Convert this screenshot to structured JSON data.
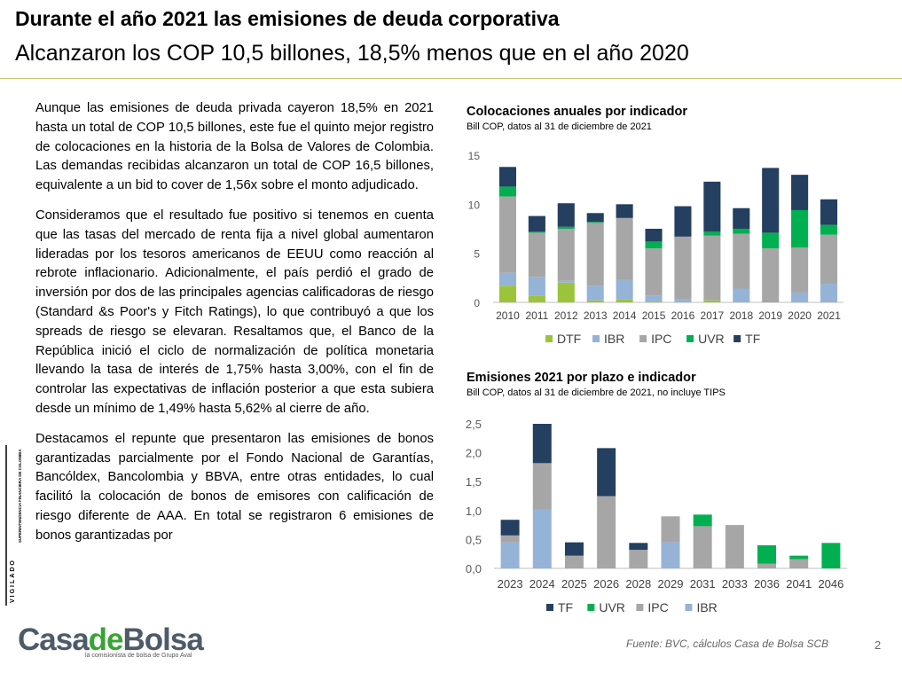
{
  "header": {
    "title": "Durante el año 2021 las emisiones de deuda corporativa",
    "subtitle": "Alcanzaron los COP 10,5 billones, 18,5% menos que en el año 2020"
  },
  "body": {
    "paragraphs": [
      "Aunque las emisiones de deuda privada cayeron 18,5% en 2021 hasta un total de COP 10,5 billones, este fue el quinto mejor registro de colocaciones en la historia de la Bolsa de Valores de Colombia. Las demandas recibidas alcanzaron un total de COP 16,5 billones, equivalente a un bid to cover de 1,56x sobre el monto adjudicado.",
      "Consideramos que el resultado fue positivo si tenemos en cuenta que las tasas del mercado de renta fija a nivel global aumentaron lideradas por los tesoros americanos de EEUU como reacción al rebrote inflacionario. Adicionalmente, el país perdió el grado de inversión por dos de las principales agencias calificadoras de riesgo (Standard &s Poor's y Fitch Ratings), lo que contribuyó a que los spreads de riesgo se elevaran. Resaltamos que, el Banco de la República inició el ciclo de normalización de política monetaria llevando la tasa de interés de 1,75% hasta 3,00%, con el fin de controlar las expectativas de inflación posterior a que esta subiera desde un mínimo de 1,49% hasta 5,62% al cierre de año.",
      "Destacamos el repunte que presentaron las emisiones de bonos garantizadas parcialmente por el Fondo Nacional de Garantías, Bancóldex, Bancolombia y BBVA, entre otras entidades, lo cual facilitó la colocación de bonos de emisores con calificación de riesgo diferente de AAA. En total se registraron 6 emisiones de bonos garantizadas por"
    ]
  },
  "sidebar": {
    "vigilado": "VIGILADO",
    "superintendencia": "SUPERINTENDENCIA FINANCIERA DE COLOMBIA"
  },
  "logo": {
    "part1": "Casa",
    "part2": "de",
    "part3": "Bolsa",
    "tagline": "la comisionista de bolsa de Grupo Aval"
  },
  "footer": {
    "source": "Fuente: BVC, cálculos Casa de Bolsa SCB",
    "page": "2"
  },
  "colors": {
    "DTF": "#9bc43a",
    "IBR": "#95b3d7",
    "IPC": "#a6a6a6",
    "UVR": "#00b050",
    "TF": "#243f60"
  },
  "chart_data": [
    {
      "type": "bar",
      "stacked": true,
      "title": "Colocaciones anuales por indicador",
      "subtitle": "Bill COP, datos al 31 de diciembre de 2021",
      "categories": [
        "2010",
        "2011",
        "2012",
        "2013",
        "2014",
        "2015",
        "2016",
        "2017",
        "2018",
        "2019",
        "2020",
        "2021"
      ],
      "ylim": [
        0,
        15
      ],
      "yticks": [
        "0",
        "5",
        "10",
        "15"
      ],
      "ytick_values": [
        0,
        5,
        10,
        15
      ],
      "grid": false,
      "legend_position": "bottom",
      "legend": [
        "DTF",
        "IBR",
        "IPC",
        "UVR",
        "TF"
      ],
      "series": [
        {
          "name": "DTF",
          "values": [
            1.7,
            0.7,
            2.0,
            0.2,
            0.3,
            0.1,
            0.0,
            0.2,
            0.0,
            0.0,
            0.0,
            0.0
          ]
        },
        {
          "name": "IBR",
          "values": [
            1.3,
            1.9,
            0.2,
            1.5,
            2.0,
            0.6,
            0.3,
            0.0,
            1.4,
            0.0,
            1.0,
            1.9
          ]
        },
        {
          "name": "IPC",
          "values": [
            7.8,
            4.5,
            5.3,
            6.4,
            6.3,
            4.8,
            6.4,
            6.6,
            5.6,
            5.5,
            4.6,
            5.0
          ]
        },
        {
          "name": "UVR",
          "values": [
            1.0,
            0.1,
            0.2,
            0.1,
            0.0,
            0.7,
            0.0,
            0.4,
            0.5,
            1.6,
            3.8,
            1.0
          ]
        },
        {
          "name": "TF",
          "values": [
            2.0,
            1.6,
            2.4,
            0.9,
            1.4,
            1.3,
            3.1,
            5.1,
            2.1,
            6.6,
            3.6,
            2.6
          ]
        }
      ]
    },
    {
      "type": "bar",
      "stacked": true,
      "title": "Emisiones 2021 por plazo e indicador",
      "subtitle": "Bill COP, datos al 31 de diciembre de 2021, no incluye TIPS",
      "categories": [
        "2023",
        "2024",
        "2025",
        "2026",
        "2028",
        "2029",
        "2031",
        "2033",
        "2036",
        "2041",
        "2046"
      ],
      "ylim": [
        0,
        2.5
      ],
      "yticks": [
        "0,0",
        "0,5",
        "1,0",
        "1,5",
        "2,0",
        "2,5"
      ],
      "ytick_values": [
        0,
        0.5,
        1.0,
        1.5,
        2.0,
        2.5
      ],
      "grid": false,
      "legend_position": "bottom",
      "legend": [
        "TF",
        "UVR",
        "IPC",
        "IBR"
      ],
      "series": [
        {
          "name": "IBR",
          "values": [
            0.45,
            1.02,
            0.0,
            0.0,
            0.0,
            0.45,
            0.0,
            0.0,
            0.0,
            0.0,
            0.0
          ]
        },
        {
          "name": "IPC",
          "values": [
            0.12,
            0.8,
            0.22,
            1.25,
            0.32,
            0.45,
            0.73,
            0.75,
            0.08,
            0.16,
            0.0
          ]
        },
        {
          "name": "UVR",
          "values": [
            0.0,
            0.0,
            0.0,
            0.0,
            0.0,
            0.0,
            0.2,
            0.0,
            0.32,
            0.06,
            0.44
          ]
        },
        {
          "name": "TF",
          "values": [
            0.27,
            0.68,
            0.23,
            0.83,
            0.12,
            0.0,
            0.0,
            0.0,
            0.0,
            0.0,
            0.0
          ]
        }
      ]
    }
  ]
}
